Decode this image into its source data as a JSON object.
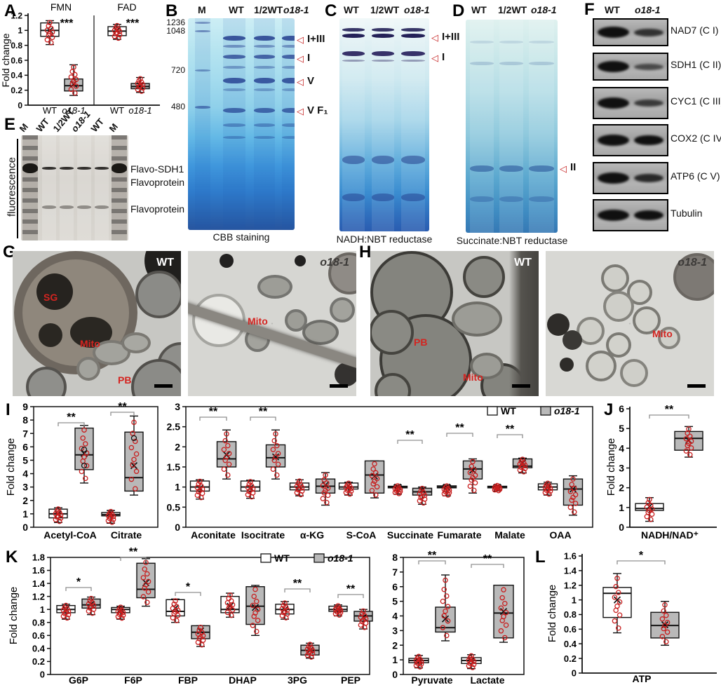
{
  "panels": {
    "A": "A",
    "B": "B",
    "C": "C",
    "D": "D",
    "E": "E",
    "F": "F",
    "G": "G",
    "H": "H",
    "I": "I",
    "J": "J",
    "K": "K",
    "L": "L"
  },
  "colors": {
    "accent_red": "#c81e1e",
    "box_gray": "#b9b9b9",
    "box_white": "#ffffff",
    "sig_bracket": "#909090",
    "gel_blue": "#2a6fc0"
  },
  "legend": {
    "wt": "WT",
    "mut": "o18-1"
  },
  "gelB": {
    "lanes": [
      "M",
      "WT",
      "1/2WT",
      "o18-1"
    ],
    "marker_labels": [
      "1236",
      "1048",
      "720",
      "480"
    ],
    "band_labels": [
      "I+III",
      "I",
      "V",
      "V F₁"
    ],
    "caption": "CBB staining"
  },
  "gelC": {
    "lanes": [
      "WT",
      "1/2WT",
      "o18-1"
    ],
    "band_labels": [
      "I+III",
      "I"
    ],
    "caption": "NADH:NBT reductase"
  },
  "gelD": {
    "lanes": [
      "WT",
      "1/2WT",
      "o18-1"
    ],
    "band_labels": [
      "II"
    ],
    "caption": "Succinate:NBT reductase"
  },
  "gelE": {
    "side_label": "fluorescence",
    "lanes": [
      "M",
      "WT",
      "1/2WT",
      "o18-1",
      "WT",
      "M"
    ],
    "band_labels": [
      "Flavo-SDH1",
      "Flavoprotein",
      "Flavoprotein"
    ]
  },
  "blotsF": {
    "lanes": [
      "WT",
      "o18-1"
    ],
    "rows": [
      {
        "label": "NAD7 (C I)",
        "wt": 1.0,
        "mut": 0.6
      },
      {
        "label": "SDH1 (C II)",
        "wt": 1.0,
        "mut": 0.32
      },
      {
        "label": "CYC1 (C III)",
        "wt": 1.0,
        "mut": 0.5
      },
      {
        "label": "COX2 (C IV)",
        "wt": 1.0,
        "mut": 1.0
      },
      {
        "label": "ATP6 (C V)",
        "wt": 1.0,
        "mut": 0.7
      },
      {
        "label": "Tubulin",
        "wt": 1.0,
        "mut": 1.0
      }
    ]
  },
  "emG": {
    "images": [
      {
        "tag": "WT",
        "labels": [
          "SG",
          "Mito",
          "PB"
        ]
      },
      {
        "tag": "o18-1",
        "labels": [
          "Mito"
        ]
      }
    ]
  },
  "emH": {
    "images": [
      {
        "tag": "WT",
        "labels": [
          "PB",
          "Mito"
        ]
      },
      {
        "tag": "o18-1",
        "labels": [
          "Mito"
        ]
      }
    ]
  },
  "chart_data": [
    {
      "id": "A",
      "type": "box",
      "ylabel": "Fold change",
      "ymin": 0,
      "ymax": 1.2,
      "yticks": [
        [
          0,
          "0"
        ],
        [
          0.2,
          "0.2"
        ],
        [
          0.4,
          "0.4"
        ],
        [
          0.6,
          "0.6"
        ],
        [
          0.8,
          "0.8"
        ],
        [
          1,
          "1"
        ],
        [
          1.2,
          "1.2"
        ]
      ],
      "panels": [
        {
          "title": "FMN",
          "sig": "***",
          "boxes": [
            {
              "label": "WT",
              "fill": "wt",
              "lo": 0.81,
              "q1": 0.92,
              "med": 1.0,
              "q3": 1.1,
              "hi": 1.13,
              "mean": 1.0
            },
            {
              "label": "o18-1",
              "fill": "mut",
              "lo": 0.13,
              "q1": 0.19,
              "med": 0.26,
              "q3": 0.35,
              "hi": 0.54,
              "mean": 0.28
            }
          ]
        },
        {
          "title": "FAD",
          "sig": "***",
          "boxes": [
            {
              "label": "WT",
              "fill": "wt",
              "lo": 0.88,
              "q1": 0.93,
              "med": 0.99,
              "q3": 1.05,
              "hi": 1.08,
              "mean": 1.0
            },
            {
              "label": "o18-1",
              "fill": "mut",
              "lo": 0.17,
              "q1": 0.22,
              "med": 0.25,
              "q3": 0.29,
              "hi": 0.37,
              "mean": 0.26
            }
          ]
        }
      ]
    },
    {
      "id": "I1",
      "type": "box",
      "ylabel": "Fold change",
      "ymin": 0,
      "ymax": 9,
      "yticks": [
        [
          0,
          "0"
        ],
        [
          1,
          "1"
        ],
        [
          2,
          "2"
        ],
        [
          3,
          "3"
        ],
        [
          4,
          "4"
        ],
        [
          5,
          "5"
        ],
        [
          6,
          "6"
        ],
        [
          7,
          "7"
        ],
        [
          8,
          "8"
        ],
        [
          9,
          "9"
        ]
      ],
      "categories": [
        {
          "label": "Acetyl-CoA",
          "sig": "**",
          "wt": {
            "lo": 0.35,
            "q1": 0.7,
            "med": 1.0,
            "q3": 1.35,
            "hi": 1.45,
            "mean": 1.0
          },
          "mut": {
            "lo": 3.3,
            "q1": 4.3,
            "med": 5.4,
            "q3": 7.4,
            "hi": 7.6,
            "mean": 5.5,
            "outliers": [
              5.8,
              4.6
            ]
          }
        },
        {
          "label": "Citrate",
          "sig": "**",
          "wt": {
            "lo": 0.3,
            "q1": 0.85,
            "med": 0.95,
            "q3": 1.1,
            "hi": 1.25,
            "mean": 1.05
          },
          "mut": {
            "lo": 2.4,
            "q1": 2.7,
            "med": 3.7,
            "q3": 7.1,
            "hi": 8.3,
            "mean": 4.6,
            "outliers": [
              6.65
            ]
          }
        }
      ]
    },
    {
      "id": "I2",
      "type": "box",
      "ylabel": "",
      "ymin": 0,
      "ymax": 3,
      "legend": true,
      "yticks": [
        [
          0,
          "0"
        ],
        [
          0.5,
          "0.5"
        ],
        [
          1,
          "1"
        ],
        [
          1.5,
          "1.5"
        ],
        [
          2,
          "2"
        ],
        [
          2.5,
          "2.5"
        ],
        [
          3,
          "3"
        ]
      ],
      "categories": [
        {
          "label": "Aconitate",
          "sig": "**",
          "wt": {
            "lo": 0.7,
            "q1": 0.9,
            "med": 1.0,
            "q3": 1.15,
            "hi": 1.18,
            "mean": 0.97
          },
          "mut": {
            "lo": 1.2,
            "q1": 1.5,
            "med": 1.7,
            "q3": 2.13,
            "hi": 2.42,
            "mean": 1.8
          }
        },
        {
          "label": "Isocitrate",
          "sig": "**",
          "wt": {
            "lo": 0.72,
            "q1": 0.9,
            "med": 1.0,
            "q3": 1.15,
            "hi": 1.17,
            "mean": 0.98
          },
          "mut": {
            "lo": 1.2,
            "q1": 1.5,
            "med": 1.73,
            "q3": 2.05,
            "hi": 2.42,
            "mean": 1.75
          }
        },
        {
          "label": "α-KG",
          "sig": null,
          "wt": {
            "lo": 0.78,
            "q1": 0.93,
            "med": 1.0,
            "q3": 1.1,
            "hi": 1.18,
            "mean": 1.0
          },
          "mut": {
            "lo": 0.55,
            "q1": 0.85,
            "med": 1.02,
            "q3": 1.2,
            "hi": 1.36,
            "mean": 1.05
          }
        },
        {
          "label": "S-CoA",
          "sig": null,
          "wt": {
            "lo": 0.8,
            "q1": 0.95,
            "med": 1.0,
            "q3": 1.1,
            "hi": 1.12,
            "mean": 1.03
          },
          "mut": {
            "lo": 0.73,
            "q1": 0.85,
            "med": 1.3,
            "q3": 1.65,
            "hi": 1.65,
            "mean": 1.27
          }
        },
        {
          "label": "Succinate",
          "sig": "**",
          "wt": {
            "lo": 0.82,
            "q1": 0.98,
            "med": 1.0,
            "q3": 1.02,
            "hi": 1.05,
            "mean": 1.0
          },
          "mut": {
            "lo": 0.57,
            "q1": 0.8,
            "med": 0.88,
            "q3": 0.97,
            "hi": 1.0,
            "mean": 0.93
          }
        },
        {
          "label": "Fumarate",
          "sig": "**",
          "wt": {
            "lo": 0.78,
            "q1": 0.98,
            "med": 1.0,
            "q3": 1.03,
            "hi": 1.05,
            "mean": 1.0
          },
          "mut": {
            "lo": 0.85,
            "q1": 1.2,
            "med": 1.45,
            "q3": 1.65,
            "hi": 1.7,
            "mean": 1.42
          }
        },
        {
          "label": "Malate",
          "sig": "**",
          "wt": {
            "lo": 0.9,
            "q1": 0.98,
            "med": 1.0,
            "q3": 1.02,
            "hi": 1.05,
            "mean": 1.0
          },
          "mut": {
            "lo": 1.35,
            "q1": 1.48,
            "med": 1.52,
            "q3": 1.7,
            "hi": 1.72,
            "mean": 1.6
          }
        },
        {
          "label": "OAA",
          "sig": null,
          "wt": {
            "lo": 0.8,
            "q1": 0.93,
            "med": 1.0,
            "q3": 1.08,
            "hi": 1.12,
            "mean": 1.0
          },
          "mut": {
            "lo": 0.3,
            "q1": 0.55,
            "med": 0.95,
            "q3": 1.2,
            "hi": 1.28,
            "mean": 0.95
          }
        }
      ]
    },
    {
      "id": "J",
      "type": "box",
      "ylabel": "Fold change",
      "ymin": 0,
      "ymax": 6,
      "yticks": [
        [
          0,
          "0"
        ],
        [
          1,
          "1"
        ],
        [
          2,
          "2"
        ],
        [
          3,
          "3"
        ],
        [
          4,
          "4"
        ],
        [
          5,
          "5"
        ],
        [
          6,
          "6"
        ]
      ],
      "categories": [
        {
          "label": "NADH/NAD⁺",
          "sig": "**",
          "wt": {
            "lo": 0.3,
            "q1": 0.85,
            "med": 0.95,
            "q3": 1.2,
            "hi": 1.5,
            "mean": 1.05
          },
          "mut": {
            "lo": 3.55,
            "q1": 3.9,
            "med": 4.5,
            "q3": 4.85,
            "hi": 5.1,
            "mean": 4.4
          }
        }
      ]
    },
    {
      "id": "K1",
      "type": "box",
      "ylabel": "Fold change",
      "ymin": 0,
      "ymax": 1.8,
      "legend": true,
      "yticks": [
        [
          0,
          "0"
        ],
        [
          0.2,
          "0.2"
        ],
        [
          0.4,
          "0.4"
        ],
        [
          0.6,
          "0.6"
        ],
        [
          0.8,
          "0.8"
        ],
        [
          1,
          "1"
        ],
        [
          1.2,
          "1.2"
        ],
        [
          1.4,
          "1.4"
        ],
        [
          1.6,
          "1.6"
        ],
        [
          1.8,
          "1.8"
        ]
      ],
      "categories": [
        {
          "label": "G6P",
          "sig": "*",
          "wt": {
            "lo": 0.85,
            "q1": 0.95,
            "med": 1.0,
            "q3": 1.06,
            "hi": 1.08,
            "mean": 1.0
          },
          "mut": {
            "lo": 0.92,
            "q1": 1.02,
            "med": 1.07,
            "q3": 1.16,
            "hi": 1.19,
            "mean": 1.08
          }
        },
        {
          "label": "F6P",
          "sig": "**",
          "wt": {
            "lo": 0.85,
            "q1": 0.95,
            "med": 1.0,
            "q3": 1.03,
            "hi": 1.05,
            "mean": 1.0
          },
          "mut": {
            "lo": 1.05,
            "q1": 1.18,
            "med": 1.31,
            "q3": 1.71,
            "hi": 1.78,
            "mean": 1.41
          }
        },
        {
          "label": "FBP",
          "sig": "*",
          "wt": {
            "lo": 0.8,
            "q1": 0.9,
            "med": 0.97,
            "q3": 1.15,
            "hi": 1.16,
            "mean": 1.02
          },
          "mut": {
            "lo": 0.43,
            "q1": 0.55,
            "med": 0.65,
            "q3": 0.75,
            "hi": 0.75,
            "mean": 0.67
          }
        },
        {
          "label": "DHAP",
          "sig": null,
          "wt": {
            "lo": 0.88,
            "q1": 0.95,
            "med": 1.0,
            "q3": 1.2,
            "hi": 1.25,
            "mean": 1.05
          },
          "mut": {
            "lo": 0.6,
            "q1": 0.77,
            "med": 1.05,
            "q3": 1.35,
            "hi": 1.37,
            "mean": 1.03
          }
        },
        {
          "label": "3PG",
          "sig": "**",
          "wt": {
            "lo": 0.85,
            "q1": 0.93,
            "med": 1.0,
            "q3": 1.08,
            "hi": 1.12,
            "mean": 1.0
          },
          "mut": {
            "lo": 0.25,
            "q1": 0.3,
            "med": 0.37,
            "q3": 0.45,
            "hi": 0.48,
            "mean": 0.37
          }
        },
        {
          "label": "PEP",
          "sig": "**",
          "wt": {
            "lo": 0.9,
            "q1": 0.97,
            "med": 1.0,
            "q3": 1.05,
            "hi": 1.07,
            "mean": 1.0
          },
          "mut": {
            "lo": 0.7,
            "q1": 0.82,
            "med": 0.9,
            "q3": 0.97,
            "hi": 1.0,
            "mean": 0.88
          }
        }
      ]
    },
    {
      "id": "K2",
      "type": "box",
      "ylabel": "",
      "ymin": 0,
      "ymax": 8,
      "yticks": [
        [
          0,
          "0"
        ],
        [
          1,
          "1"
        ],
        [
          2,
          "2"
        ],
        [
          3,
          "3"
        ],
        [
          4,
          "4"
        ],
        [
          5,
          "5"
        ],
        [
          6,
          "6"
        ],
        [
          7,
          "7"
        ],
        [
          8,
          "8"
        ]
      ],
      "categories": [
        {
          "label": "Pyruvate",
          "sig": "**",
          "wt": {
            "lo": 0.45,
            "q1": 0.8,
            "med": 0.95,
            "q3": 1.1,
            "hi": 1.3,
            "mean": 0.9
          },
          "mut": {
            "lo": 2.3,
            "q1": 2.9,
            "med": 3.2,
            "q3": 4.6,
            "hi": 6.8,
            "mean": 3.8
          }
        },
        {
          "label": "Lactate",
          "sig": "**",
          "wt": {
            "lo": 0.4,
            "q1": 0.75,
            "med": 0.95,
            "q3": 1.15,
            "hi": 1.35,
            "mean": 0.95
          },
          "mut": {
            "lo": 2.2,
            "q1": 2.5,
            "med": 4.2,
            "q3": 6.1,
            "hi": 6.1,
            "mean": 4.3
          }
        }
      ]
    },
    {
      "id": "L",
      "type": "box",
      "ylabel": "Fold change",
      "ymin": 0,
      "ymax": 1.6,
      "yticks": [
        [
          0,
          "0"
        ],
        [
          0.2,
          "0.2"
        ],
        [
          0.4,
          "0.4"
        ],
        [
          0.6,
          "0.6"
        ],
        [
          0.8,
          "0.8"
        ],
        [
          1,
          "1"
        ],
        [
          1.2,
          "1.2"
        ],
        [
          1.4,
          "1.4"
        ],
        [
          1.6,
          "1.6"
        ]
      ],
      "categories": [
        {
          "label": "ATP",
          "sig": "*",
          "wt": {
            "lo": 0.55,
            "q1": 0.76,
            "med": 1.09,
            "q3": 1.17,
            "hi": 1.36,
            "mean": 1.0
          },
          "mut": {
            "lo": 0.38,
            "q1": 0.48,
            "med": 0.65,
            "q3": 0.83,
            "hi": 0.98,
            "mean": 0.66
          }
        }
      ]
    }
  ]
}
